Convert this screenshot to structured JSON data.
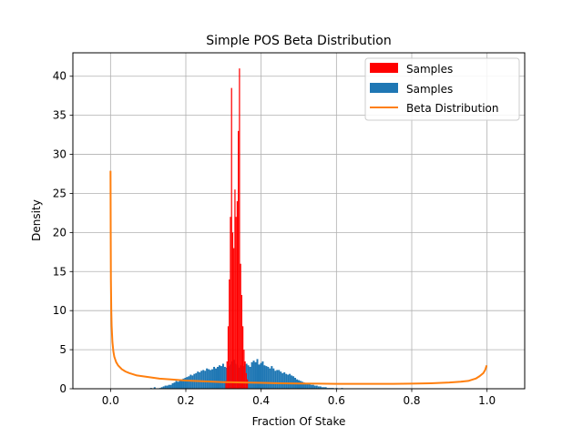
{
  "chart_data": {
    "type": "histogram",
    "title": "Simple POS Beta Distribution",
    "xlabel": "Fraction Of Stake",
    "ylabel": "Density",
    "xlim": [
      -0.1,
      1.1
    ],
    "ylim": [
      0,
      43
    ],
    "xticks": [
      0.0,
      0.2,
      0.4,
      0.6,
      0.8,
      1.0
    ],
    "xtick_labels": [
      "0.0",
      "0.2",
      "0.4",
      "0.6",
      "0.8",
      "1.0"
    ],
    "yticks": [
      0,
      5,
      10,
      15,
      20,
      25,
      30,
      35,
      40
    ],
    "ytick_labels": [
      "0",
      "5",
      "10",
      "15",
      "20",
      "25",
      "30",
      "35",
      "40"
    ],
    "grid": true,
    "legend_position": "top-right",
    "series": [
      {
        "name": "Samples",
        "kind": "histogram",
        "color": "#ff0000",
        "bin_range": [
          0.305,
          0.365
        ],
        "values": [
          1.0,
          3.5,
          8.0,
          14.0,
          22.0,
          38.5,
          20.0,
          18.0,
          25.5,
          22.0,
          24.0,
          33.0,
          41.0,
          16.0,
          12.0,
          8.0,
          5.0,
          3.5,
          2.0,
          1.2
        ]
      },
      {
        "name": "Samples",
        "kind": "histogram",
        "color": "#1f77b4",
        "bin_range": [
          0.0,
          1.0
        ],
        "values": [
          0,
          0,
          0,
          0,
          0,
          0,
          0,
          0,
          0,
          0,
          0,
          0,
          0,
          0,
          0,
          0,
          0,
          0,
          0,
          0,
          0,
          0,
          0.1,
          0,
          0.2,
          0,
          0,
          0.1,
          0.2,
          0.3,
          0.4,
          0.4,
          0.5,
          0.5,
          0.7,
          0.8,
          1.0,
          0.9,
          1.1,
          1.2,
          1.3,
          1.4,
          1.5,
          1.6,
          1.8,
          1.7,
          1.9,
          2.0,
          2.2,
          2.1,
          2.3,
          2.4,
          2.3,
          2.6,
          2.5,
          2.4,
          2.5,
          2.8,
          2.6,
          2.8,
          3.0,
          2.9,
          3.2,
          2.8,
          2.7,
          2.9,
          3.1,
          3.5,
          3.7,
          3.2,
          3.0,
          2.7,
          3.0,
          2.9,
          3.1,
          3.2,
          3.0,
          2.8,
          3.4,
          3.6,
          3.4,
          3.8,
          3.1,
          3.3,
          3.5,
          3.0,
          2.9,
          2.8,
          2.6,
          2.9,
          2.6,
          2.3,
          2.4,
          2.4,
          2.2,
          2.0,
          2.1,
          1.9,
          1.8,
          1.9,
          1.7,
          1.6,
          1.4,
          1.2,
          1.1,
          1.0,
          0.9,
          0.8,
          0.7,
          0.6,
          0.6,
          0.5,
          0.5,
          0.4,
          0.4,
          0.3,
          0.3,
          0.2,
          0.2,
          0.2,
          0.1,
          0.1,
          0.1,
          0.1,
          0,
          0.1,
          0,
          0,
          0.1,
          0,
          0,
          0,
          0,
          0,
          0,
          0,
          0,
          0,
          0,
          0,
          0,
          0,
          0,
          0,
          0,
          0,
          0,
          0,
          0,
          0,
          0,
          0,
          0,
          0,
          0,
          0,
          0,
          0,
          0,
          0,
          0,
          0,
          0,
          0,
          0,
          0,
          0,
          0,
          0,
          0,
          0,
          0,
          0,
          0,
          0,
          0,
          0,
          0,
          0,
          0,
          0,
          0,
          0,
          0,
          0,
          0,
          0,
          0,
          0,
          0,
          0,
          0,
          0,
          0,
          0,
          0,
          0,
          0,
          0,
          0,
          0,
          0,
          0,
          0,
          0,
          0,
          0,
          0,
          0
        ]
      },
      {
        "name": "Beta Distribution",
        "kind": "line",
        "color": "#ff7f0e",
        "x": [
          0.0,
          0.0005,
          0.001,
          0.002,
          0.003,
          0.005,
          0.0075,
          0.01,
          0.015,
          0.02,
          0.03,
          0.04,
          0.05,
          0.07,
          0.1,
          0.13,
          0.16,
          0.2,
          0.25,
          0.3,
          0.35,
          0.4,
          0.45,
          0.5,
          0.55,
          0.6,
          0.65,
          0.7,
          0.75,
          0.8,
          0.85,
          0.9,
          0.93,
          0.95,
          0.97,
          0.98,
          0.99,
          0.995,
          0.999
        ],
        "y": [
          27.9,
          20.0,
          14.0,
          10.0,
          8.0,
          6.0,
          4.8,
          4.1,
          3.4,
          3.0,
          2.5,
          2.2,
          2.0,
          1.7,
          1.5,
          1.3,
          1.2,
          1.05,
          0.95,
          0.85,
          0.8,
          0.75,
          0.7,
          0.67,
          0.65,
          0.63,
          0.62,
          0.62,
          0.63,
          0.65,
          0.7,
          0.8,
          0.9,
          1.0,
          1.3,
          1.6,
          2.0,
          2.4,
          3.0
        ]
      }
    ]
  }
}
